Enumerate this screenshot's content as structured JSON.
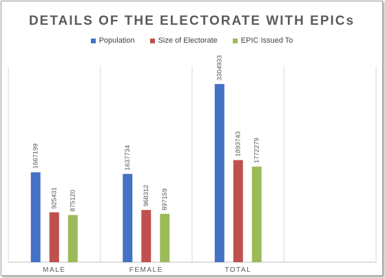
{
  "chart_data": {
    "type": "bar",
    "title": "DETAILS OF THE ELECTORATE WITH EPICs",
    "categories": [
      "MALE",
      "FEMALE",
      "TOTAL",
      ""
    ],
    "series": [
      {
        "name": "Population",
        "color": "#4472C4",
        "values": [
          1667199,
          1637734,
          3304933,
          null
        ]
      },
      {
        "name": "Size of Electorate",
        "color": "#C0504D",
        "values": [
          925431,
          968312,
          1893743,
          null
        ]
      },
      {
        "name": "EPIC Issued To",
        "color": "#9BBB59",
        "values": [
          875120,
          897159,
          1772279,
          null
        ]
      }
    ],
    "ylim": [
      0,
      3600000
    ],
    "grid": false,
    "legend_position": "top",
    "data_labels": true
  }
}
